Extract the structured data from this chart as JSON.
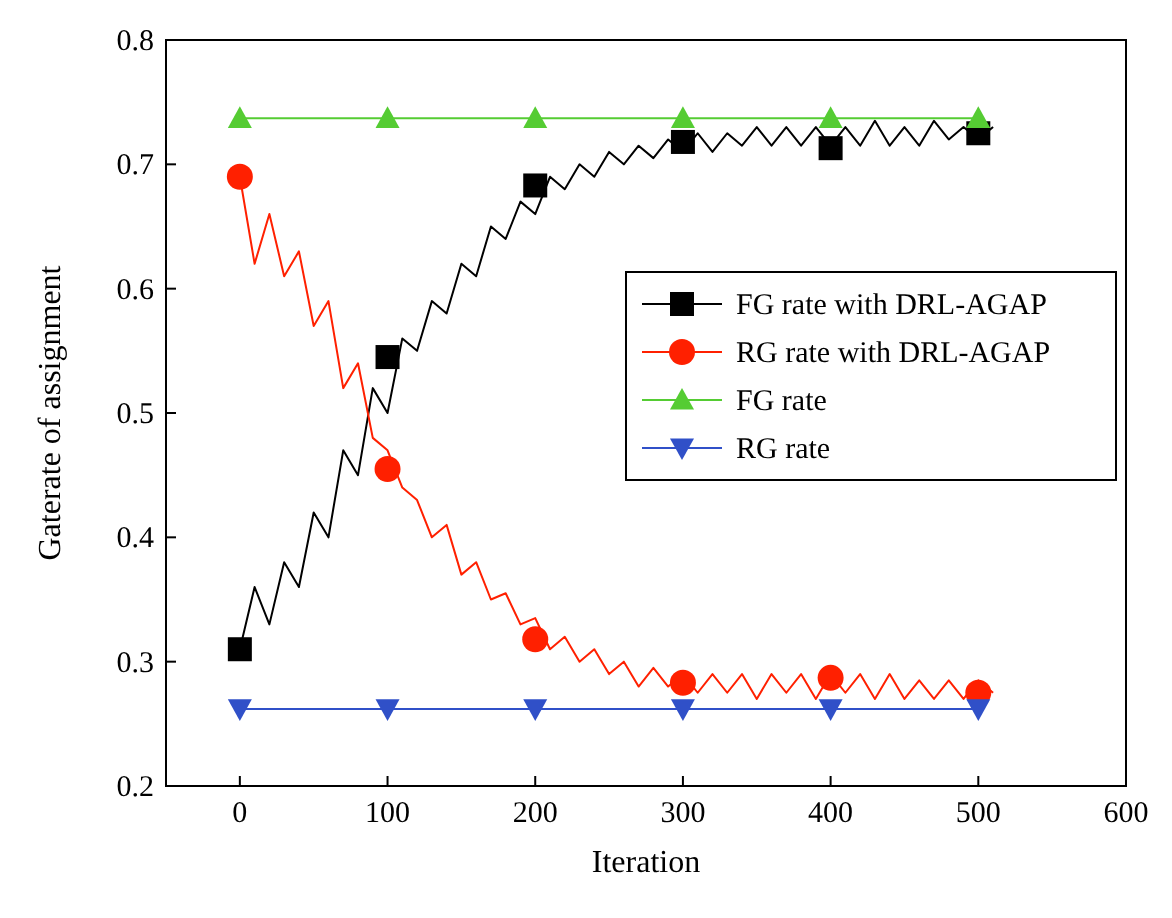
{
  "chart_data": {
    "type": "line",
    "xlabel": "Iteration",
    "ylabel": "Gaterate of assignment",
    "xlim": [
      -50,
      600
    ],
    "ylim": [
      0.2,
      0.8
    ],
    "xticks": [
      0,
      100,
      200,
      300,
      400,
      500,
      600
    ],
    "yticks": [
      0.2,
      0.3,
      0.4,
      0.5,
      0.6,
      0.7,
      0.8
    ],
    "grid": false,
    "legend": "right",
    "series": [
      {
        "type": "line",
        "color": "#000000",
        "marker": "none",
        "x": [
          0,
          10,
          20,
          30,
          40,
          50,
          60,
          70,
          80,
          90,
          100,
          110,
          120,
          130,
          140,
          150,
          160,
          170,
          180,
          190,
          200,
          210,
          220,
          230,
          240,
          250,
          260,
          270,
          280,
          290,
          300,
          310,
          320,
          330,
          340,
          350,
          360,
          370,
          380,
          390,
          400,
          410,
          420,
          430,
          440,
          450,
          460,
          470,
          480,
          490,
          500,
          510
        ],
        "values": [
          0.31,
          0.36,
          0.33,
          0.38,
          0.36,
          0.42,
          0.4,
          0.47,
          0.45,
          0.52,
          0.5,
          0.56,
          0.55,
          0.59,
          0.58,
          0.62,
          0.61,
          0.65,
          0.64,
          0.67,
          0.66,
          0.69,
          0.68,
          0.7,
          0.69,
          0.71,
          0.7,
          0.715,
          0.705,
          0.72,
          0.71,
          0.725,
          0.71,
          0.725,
          0.715,
          0.73,
          0.715,
          0.73,
          0.715,
          0.73,
          0.715,
          0.73,
          0.715,
          0.735,
          0.715,
          0.73,
          0.715,
          0.735,
          0.72,
          0.73,
          0.72,
          0.73
        ]
      },
      {
        "type": "line",
        "color": "#ff2000",
        "marker": "none",
        "x": [
          0,
          10,
          20,
          30,
          40,
          50,
          60,
          70,
          80,
          90,
          100,
          110,
          120,
          130,
          140,
          150,
          160,
          170,
          180,
          190,
          200,
          210,
          220,
          230,
          240,
          250,
          260,
          270,
          280,
          290,
          300,
          310,
          320,
          330,
          340,
          350,
          360,
          370,
          380,
          390,
          400,
          410,
          420,
          430,
          440,
          450,
          460,
          470,
          480,
          490,
          500,
          510
        ],
        "values": [
          0.69,
          0.62,
          0.66,
          0.61,
          0.63,
          0.57,
          0.59,
          0.52,
          0.54,
          0.48,
          0.47,
          0.44,
          0.43,
          0.4,
          0.41,
          0.37,
          0.38,
          0.35,
          0.355,
          0.33,
          0.335,
          0.31,
          0.32,
          0.3,
          0.31,
          0.29,
          0.3,
          0.28,
          0.295,
          0.28,
          0.29,
          0.275,
          0.29,
          0.275,
          0.29,
          0.27,
          0.29,
          0.275,
          0.29,
          0.27,
          0.29,
          0.275,
          0.29,
          0.27,
          0.29,
          0.27,
          0.285,
          0.27,
          0.285,
          0.27,
          0.285,
          0.275
        ]
      },
      {
        "name": "FG rate with DRL-AGAP",
        "type": "scatter",
        "color": "#000000",
        "marker": "square",
        "x": [
          0,
          100,
          200,
          300,
          400,
          500
        ],
        "values": [
          0.31,
          0.545,
          0.683,
          0.718,
          0.713,
          0.725
        ]
      },
      {
        "name": "RG rate with DRL-AGAP",
        "type": "scatter",
        "color": "#ff2000",
        "marker": "circle",
        "x": [
          0,
          100,
          200,
          300,
          400,
          500
        ],
        "values": [
          0.69,
          0.455,
          0.318,
          0.283,
          0.287,
          0.275
        ]
      },
      {
        "name": "FG rate",
        "type": "line",
        "color": "#55cc33",
        "marker": "triangle",
        "x": [
          0,
          100,
          200,
          300,
          400,
          500
        ],
        "values": [
          0.737,
          0.737,
          0.737,
          0.737,
          0.737,
          0.737
        ]
      },
      {
        "name": "RG rate",
        "type": "line",
        "color": "#3050c8",
        "marker": "triangle-down",
        "x": [
          0,
          100,
          200,
          300,
          400,
          500
        ],
        "values": [
          0.262,
          0.262,
          0.262,
          0.262,
          0.262,
          0.262
        ]
      }
    ]
  }
}
